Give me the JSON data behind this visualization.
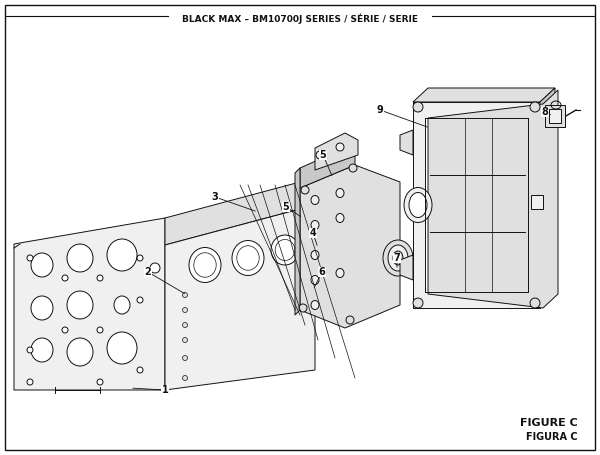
{
  "title": "BLACK MAX – BM10700J SERIES / SÉRIE / SERIE",
  "figure_label": "FIGURE C",
  "figura_label": "FIGURA C",
  "bg_color": "#ffffff",
  "line_color": "#111111",
  "fill_light": "#f0f0f0",
  "fill_mid": "#e0e0e0",
  "fill_dark": "#c8c8c8",
  "figsize": [
    6.0,
    4.55
  ],
  "dpi": 100
}
